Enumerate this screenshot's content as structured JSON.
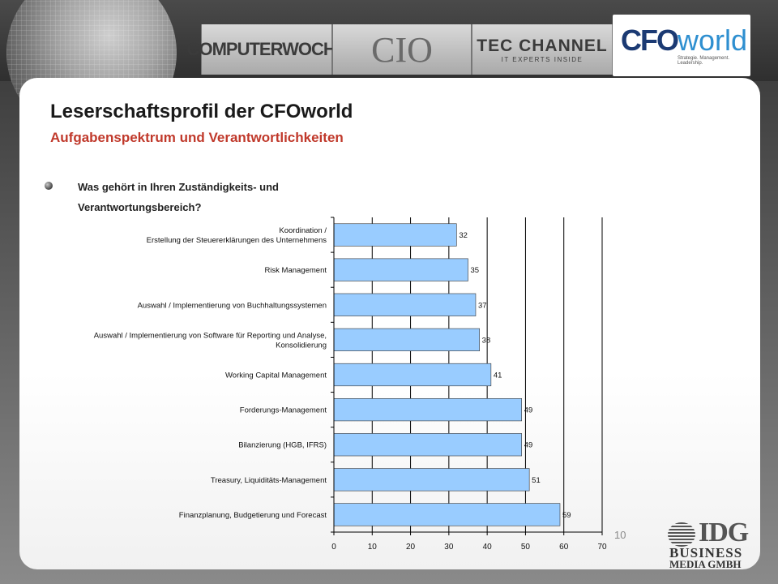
{
  "header": {
    "brands": {
      "computerwoche": "COMPUTERWOCHE",
      "cio": "CIO",
      "tecchannel": "TEC CHANNEL",
      "tecchannel_tagline": "IT EXPERTS INSIDE",
      "cfoworld_cfo": "CFO",
      "cfoworld_world": "world",
      "cfoworld_tagline": "Strategie. Management. Leadership."
    }
  },
  "slide": {
    "title": "Leserschaftsprofil der CFOworld",
    "subtitle": "Aufgabenspektrum und Verantwortlichkeiten",
    "question_line1": "Was gehört in Ihren Zuständigkeits- und",
    "question_line2": "Verantwortungsbereich?",
    "page_number": "10"
  },
  "footer": {
    "idg": "IDG",
    "business": "BUSINESS",
    "media": "MEDIA GMBH"
  },
  "colors": {
    "bar_fill": "#99ccff",
    "bar_stroke": "#333333",
    "subtitle_red": "#c0392b"
  },
  "chart_data": {
    "type": "bar",
    "orientation": "horizontal",
    "categories": [
      [
        "Koordination /",
        "Erstellung der Steuererklärungen des Unternehmens"
      ],
      [
        "Risk Management"
      ],
      [
        "Auswahl / Implementierung von Buchhaltungssystemen"
      ],
      [
        "Auswahl / Implementierung von Software für Reporting und Analyse,",
        "Konsolidierung"
      ],
      [
        "Working Capital Management"
      ],
      [
        "Forderungs-Management"
      ],
      [
        "Bilanzierung (HGB, IFRS)"
      ],
      [
        "Treasury, Liquiditäts-Management"
      ],
      [
        "Finanzplanung, Budgetierung und Forecast"
      ]
    ],
    "values": [
      32,
      35,
      37,
      38,
      41,
      49,
      49,
      51,
      59
    ],
    "xlim": [
      0,
      70
    ],
    "xticks": [
      0,
      10,
      20,
      30,
      40,
      50,
      60,
      70
    ],
    "grid": true
  }
}
